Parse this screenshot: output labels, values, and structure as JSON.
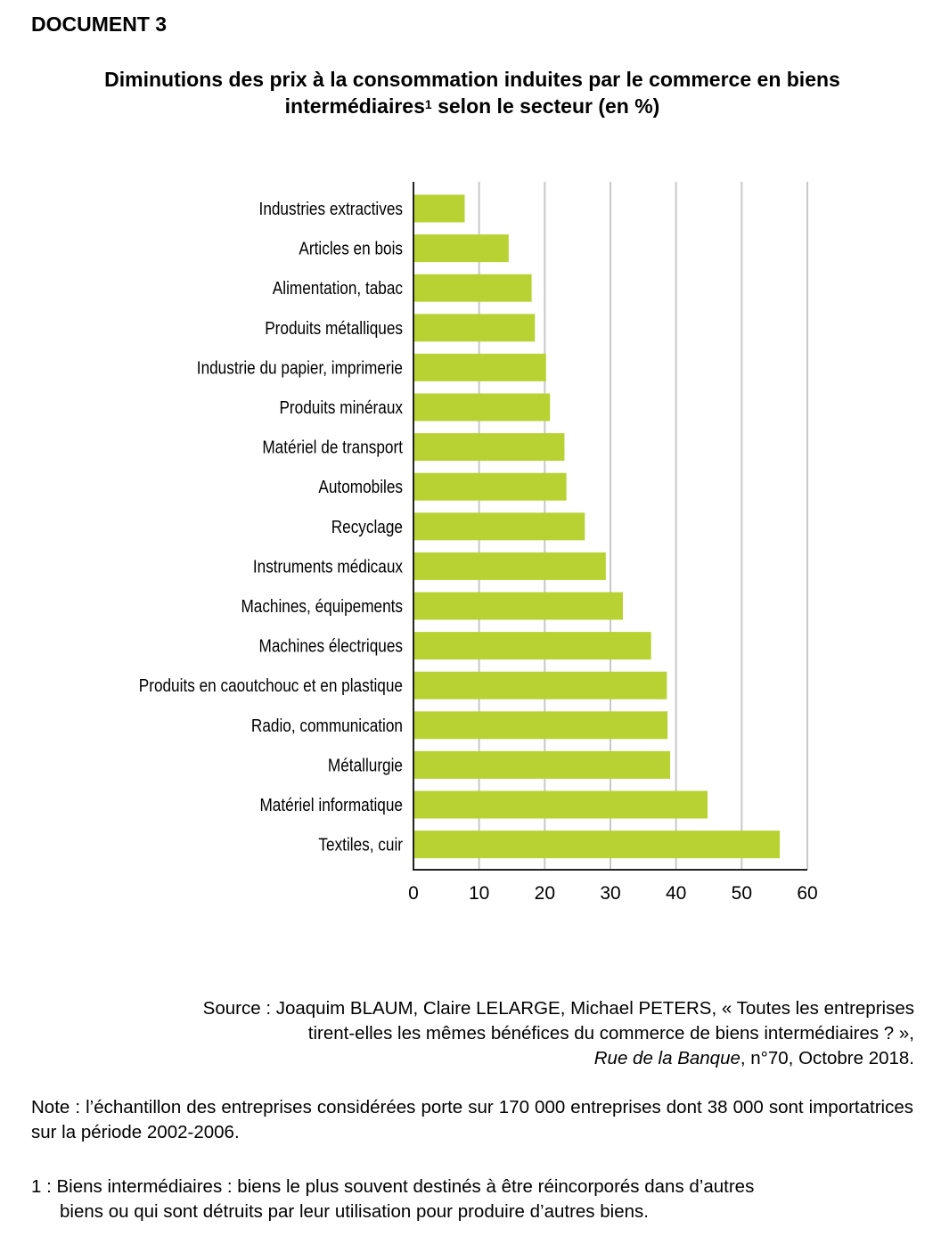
{
  "header": {
    "doc_label": "DOCUMENT 3",
    "title_main": "Diminutions des prix à la consommation induites par le commerce en biens",
    "title_line2_pre": "intermédiaires",
    "title_sup": "1",
    "title_line2_post": " selon le secteur (en %)"
  },
  "chart_data": {
    "type": "bar",
    "orientation": "horizontal",
    "categories": [
      "Industries extractives",
      "Articles en bois",
      "Alimentation, tabac",
      "Produits métalliques",
      "Industrie du papier, imprimerie",
      "Produits minéraux",
      "Matériel de transport",
      "Automobiles",
      "Recyclage",
      "Instruments médicaux",
      "Machines, équipements",
      "Machines électriques",
      "Produits en caoutchouc et en plastique",
      "Radio, communication",
      "Métallurgie",
      "Matériel informatique",
      "Textiles, cuir"
    ],
    "values": [
      7.8,
      14.5,
      18,
      18.5,
      20.2,
      20.8,
      23,
      23.3,
      26.1,
      29.3,
      31.9,
      36.2,
      38.6,
      38.7,
      39.1,
      44.8,
      55.8
    ],
    "xlim": [
      0,
      60
    ],
    "xticks": [
      "0",
      "10",
      "20",
      "30",
      "40",
      "50",
      "60"
    ],
    "grid": true,
    "bar_color": "#b9d233",
    "grid_color": "#c8c8c8"
  },
  "source": {
    "line1": "Source : Joaquim BLAUM, Claire LELARGE, Michael PETERS, « Toutes les entreprises",
    "line2": "tirent-elles les mêmes bénéfices du commerce de biens intermédiaires ? »,",
    "line3_italic": "Rue de la Banque",
    "line3_rest": ", n°70, Octobre 2018."
  },
  "note": {
    "text": "Note : l’échantillon des entreprises considérées porte sur 170 000 entreprises dont 38 000 sont importatrices sur la période 2002-2006."
  },
  "footnote": {
    "line1": "1 : Biens intermédiaires : biens le plus souvent destinés à être réincorporés dans d’autres",
    "line2": "biens ou qui sont détruits par leur utilisation pour produire d’autres biens."
  }
}
